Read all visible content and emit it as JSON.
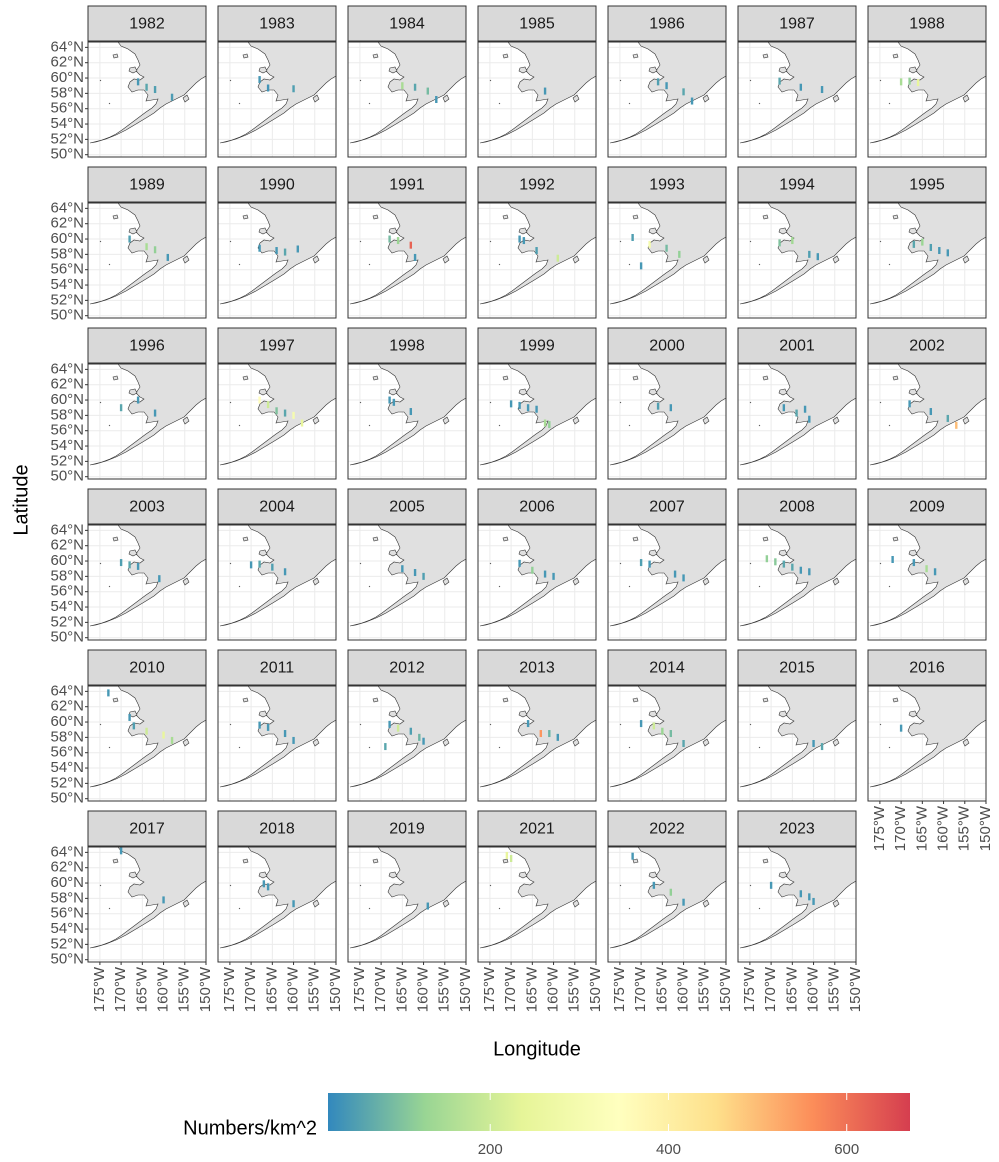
{
  "chart_data": {
    "type": "facet-map",
    "xlabel": "Longitude",
    "ylabel": "Latitude",
    "xlim": [
      -177.8,
      -150
    ],
    "ylim": [
      49.7,
      64.7
    ],
    "xticks": [
      {
        "value": -175,
        "label": "175°W"
      },
      {
        "value": -170,
        "label": "170°W"
      },
      {
        "value": -165,
        "label": "165°W"
      },
      {
        "value": -160,
        "label": "160°W"
      },
      {
        "value": -155,
        "label": "155°W"
      },
      {
        "value": -150,
        "label": "150°W"
      }
    ],
    "yticks": [
      {
        "value": 50,
        "label": "50°N"
      },
      {
        "value": 52,
        "label": "52°N"
      },
      {
        "value": 54,
        "label": "54°N"
      },
      {
        "value": 56,
        "label": "56°N"
      },
      {
        "value": 58,
        "label": "58°N"
      },
      {
        "value": 60,
        "label": "60°N"
      },
      {
        "value": 62,
        "label": "62°N"
      },
      {
        "value": 64,
        "label": "64°N"
      }
    ],
    "grid": true,
    "legend": {
      "title": "Numbers/km^2",
      "clim": [
        18,
        671
      ],
      "ticks": [
        200,
        400,
        600
      ],
      "colors": [
        "#3288bd",
        "#99d594",
        "#e6f598",
        "#ffffbf",
        "#fee08b",
        "#fc8d59",
        "#d53e4f"
      ]
    },
    "panels": [
      {
        "title": "1982",
        "lon": [
          -166,
          -164,
          -162,
          -158
        ],
        "lat": [
          59.5,
          58.8,
          58.5,
          57.5
        ],
        "values": [
          40,
          60,
          50,
          45
        ]
      },
      {
        "title": "1983",
        "lon": [
          -168,
          -166,
          -160
        ],
        "lat": [
          59.8,
          58.7,
          58.6
        ],
        "values": [
          40,
          35,
          50
        ]
      },
      {
        "title": "1984",
        "lon": [
          -165,
          -162,
          -159,
          -157
        ],
        "lat": [
          59,
          58.8,
          58.3,
          57.2
        ],
        "values": [
          150,
          60,
          90,
          40
        ]
      },
      {
        "title": "1985",
        "lon": [
          -162
        ],
        "lat": [
          58.3
        ],
        "values": [
          40
        ]
      },
      {
        "title": "1986",
        "lon": [
          -166,
          -164,
          -160,
          -158
        ],
        "lat": [
          59.5,
          59,
          58.2,
          57
        ],
        "values": [
          50,
          40,
          60,
          40
        ]
      },
      {
        "title": "1987",
        "lon": [
          -168,
          -163,
          -158
        ],
        "lat": [
          59.6,
          58.8,
          58.5
        ],
        "values": [
          60,
          40,
          40
        ]
      },
      {
        "title": "1988",
        "lon": [
          -170,
          -168,
          -166
        ],
        "lat": [
          59.5,
          59.6,
          59.4
        ],
        "values": [
          150,
          120,
          250
        ]
      },
      {
        "title": "1989",
        "lon": [
          -168,
          -164,
          -162,
          -159
        ],
        "lat": [
          60,
          59,
          58.6,
          57.6
        ],
        "values": [
          50,
          150,
          120,
          40
        ]
      },
      {
        "title": "1990",
        "lon": [
          -168,
          -164,
          -162,
          -159
        ],
        "lat": [
          58.8,
          58.5,
          58.3,
          58.7
        ],
        "values": [
          40,
          40,
          60,
          40
        ]
      },
      {
        "title": "1991",
        "lon": [
          -168,
          -166,
          -163,
          -162
        ],
        "lat": [
          60,
          59.8,
          59.2,
          57.6
        ],
        "values": [
          90,
          130,
          620,
          40
        ]
      },
      {
        "title": "1992",
        "lon": [
          -168,
          -167,
          -164,
          -159
        ],
        "lat": [
          60,
          59.8,
          58.5,
          57.5
        ],
        "values": [
          40,
          40,
          50,
          200
        ]
      },
      {
        "title": "1993",
        "lon": [
          -172,
          -170,
          -168,
          -164,
          -161
        ],
        "lat": [
          60.2,
          56.5,
          59.3,
          58.8,
          58
        ],
        "values": [
          50,
          40,
          300,
          90,
          120
        ]
      },
      {
        "title": "1994",
        "lon": [
          -168,
          -165,
          -161,
          -159
        ],
        "lat": [
          59.5,
          59.8,
          58,
          57.7
        ],
        "values": [
          100,
          140,
          50,
          40
        ]
      },
      {
        "title": "1995",
        "lon": [
          -167,
          -165,
          -163,
          -161,
          -159
        ],
        "lat": [
          59.3,
          59.6,
          58.9,
          58.5,
          58.2
        ],
        "values": [
          60,
          130,
          50,
          40,
          40
        ]
      },
      {
        "title": "1996",
        "lon": [
          -170,
          -166,
          -162
        ],
        "lat": [
          59,
          60,
          58.3
        ],
        "values": [
          60,
          40,
          40
        ]
      },
      {
        "title": "1997",
        "lon": [
          -168,
          -166,
          -164,
          -162,
          -160,
          -158
        ],
        "lat": [
          60,
          59.4,
          58.6,
          58.3,
          58,
          57
        ],
        "values": [
          350,
          200,
          100,
          60,
          300,
          250
        ]
      },
      {
        "title": "1998",
        "lon": [
          -168,
          -167,
          -163
        ],
        "lat": [
          60,
          59.7,
          58.5
        ],
        "values": [
          40,
          40,
          40
        ]
      },
      {
        "title": "1999",
        "lon": [
          -170,
          -168,
          -166,
          -164,
          -162,
          -161
        ],
        "lat": [
          59.5,
          59.3,
          59,
          58.8,
          57,
          56.8
        ],
        "values": [
          40,
          40,
          40,
          40,
          150,
          120
        ]
      },
      {
        "title": "2000",
        "lon": [
          -166,
          -163
        ],
        "lat": [
          59.2,
          59
        ],
        "values": [
          50,
          40
        ]
      },
      {
        "title": "2001",
        "lon": [
          -167,
          -164,
          -162,
          -161
        ],
        "lat": [
          59,
          58.3,
          58.8,
          57.5
        ],
        "values": [
          40,
          60,
          40,
          40
        ]
      },
      {
        "title": "2002",
        "lon": [
          -168,
          -163,
          -159,
          -157
        ],
        "lat": [
          59.5,
          58.5,
          57.6,
          56.7
        ],
        "values": [
          40,
          40,
          60,
          500
        ]
      },
      {
        "title": "2003",
        "lon": [
          -170,
          -168,
          -166,
          -161
        ],
        "lat": [
          59.8,
          59.5,
          59.3,
          57.7
        ],
        "values": [
          50,
          60,
          40,
          40
        ]
      },
      {
        "title": "2004",
        "lon": [
          -170,
          -168,
          -165,
          -162
        ],
        "lat": [
          59.5,
          59.6,
          59.2,
          58.6
        ],
        "values": [
          40,
          60,
          50,
          40
        ]
      },
      {
        "title": "2005",
        "lon": [
          -165,
          -162,
          -160
        ],
        "lat": [
          59,
          58.5,
          58
        ],
        "values": [
          40,
          40,
          50
        ]
      },
      {
        "title": "2006",
        "lon": [
          -168,
          -165,
          -162,
          -160
        ],
        "lat": [
          59.7,
          58.8,
          58.3,
          58
        ],
        "values": [
          40,
          120,
          40,
          40
        ]
      },
      {
        "title": "2007",
        "lon": [
          -170,
          -168,
          -162,
          -160
        ],
        "lat": [
          59.8,
          59.6,
          58.3,
          57.8
        ],
        "values": [
          50,
          40,
          40,
          40
        ]
      },
      {
        "title": "2008",
        "lon": [
          -171,
          -169,
          -167,
          -165,
          -163,
          -161
        ],
        "lat": [
          60.3,
          59.9,
          59.6,
          59.2,
          58.8,
          58.6
        ],
        "values": [
          120,
          110,
          60,
          60,
          40,
          40
        ]
      },
      {
        "title": "2009",
        "lon": [
          -172,
          -167,
          -164,
          -162
        ],
        "lat": [
          60.2,
          59.8,
          59,
          58.6
        ],
        "values": [
          40,
          40,
          150,
          40
        ]
      },
      {
        "title": "2010",
        "lon": [
          -173,
          -168,
          -167,
          -164,
          -160,
          -158
        ],
        "lat": [
          63.8,
          60.6,
          59.5,
          58.8,
          58.3,
          57.6
        ],
        "values": [
          40,
          40,
          50,
          200,
          250,
          150
        ]
      },
      {
        "title": "2011",
        "lon": [
          -168,
          -166,
          -162,
          -160
        ],
        "lat": [
          59.6,
          59.3,
          58.5,
          57.6
        ],
        "values": [
          40,
          40,
          40,
          40
        ]
      },
      {
        "title": "2012",
        "lon": [
          -168,
          -166,
          -163,
          -161,
          -160,
          -169
        ],
        "lat": [
          59.7,
          59.2,
          58.8,
          58,
          57.5,
          56.8
        ],
        "values": [
          40,
          200,
          50,
          80,
          40,
          60
        ]
      },
      {
        "title": "2013",
        "lon": [
          -166,
          -163,
          -161,
          -159
        ],
        "lat": [
          59.8,
          58.5,
          58.5,
          58
        ],
        "values": [
          40,
          550,
          80,
          40
        ]
      },
      {
        "title": "2014",
        "lon": [
          -170,
          -167,
          -165,
          -163,
          -160
        ],
        "lat": [
          59.8,
          59.5,
          58.8,
          58.5,
          57.2
        ],
        "values": [
          40,
          200,
          130,
          90,
          60
        ]
      },
      {
        "title": "2015",
        "lon": [
          -160,
          -158
        ],
        "lat": [
          57.2,
          56.8
        ],
        "values": [
          40,
          60
        ]
      },
      {
        "title": "2016",
        "lon": [
          -170
        ],
        "lat": [
          59.2
        ],
        "values": [
          40
        ]
      },
      {
        "title": "2017",
        "lon": [
          -170,
          -160
        ],
        "lat": [
          64.2,
          57.8
        ],
        "values": [
          40,
          40
        ]
      },
      {
        "title": "2018",
        "lon": [
          -167,
          -166,
          -160
        ],
        "lat": [
          59.9,
          59.5,
          57.3
        ],
        "values": [
          40,
          40,
          40
        ]
      },
      {
        "title": "2019",
        "lon": [
          -159
        ],
        "lat": [
          57
        ],
        "values": [
          40
        ]
      },
      {
        "title": "2021",
        "lon": [
          -171,
          -170
        ],
        "lat": [
          63.6,
          63.2
        ],
        "values": [
          250,
          200
        ]
      },
      {
        "title": "2022",
        "lon": [
          -172,
          -167,
          -163,
          -160
        ],
        "lat": [
          63.5,
          59.7,
          58.8,
          57.5
        ],
        "values": [
          40,
          40,
          120,
          40
        ]
      },
      {
        "title": "2023",
        "lon": [
          -170,
          -163,
          -161,
          -160
        ],
        "lat": [
          59.7,
          58.6,
          58.2,
          57.6
        ],
        "values": [
          40,
          40,
          40,
          40
        ]
      }
    ]
  }
}
